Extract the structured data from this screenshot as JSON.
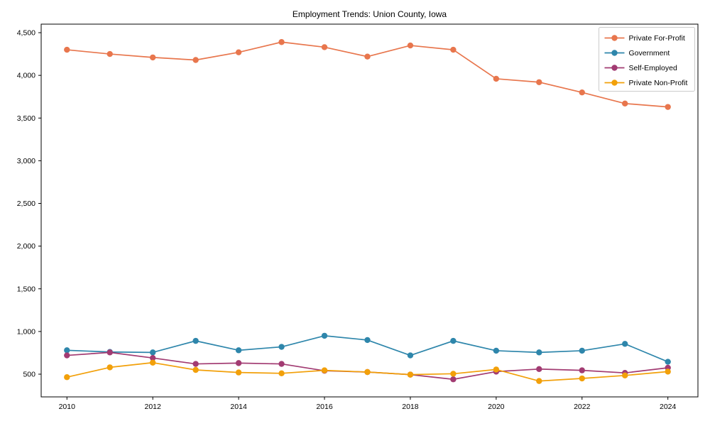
{
  "title": "Employment Trends: Union County, Iowa",
  "chart_data": {
    "type": "line",
    "title": "Employment Trends: Union County, Iowa",
    "xlabel": "",
    "ylabel": "",
    "x": [
      2010,
      2011,
      2012,
      2013,
      2014,
      2015,
      2016,
      2017,
      2018,
      2019,
      2020,
      2021,
      2022,
      2023,
      2024
    ],
    "series": [
      {
        "name": "Private For-Profit",
        "color": "#E8764D",
        "values": [
          4300,
          4250,
          4210,
          4180,
          4270,
          4390,
          4330,
          4220,
          4350,
          4300,
          3960,
          3920,
          3800,
          3670,
          3630
        ]
      },
      {
        "name": "Government",
        "color": "#2E86AB",
        "values": [
          780,
          760,
          755,
          890,
          780,
          820,
          950,
          900,
          720,
          890,
          775,
          755,
          775,
          855,
          645
        ]
      },
      {
        "name": "Self-Employed",
        "color": "#A23B72",
        "values": [
          720,
          755,
          690,
          620,
          630,
          620,
          540,
          525,
          495,
          440,
          530,
          560,
          545,
          515,
          575
        ]
      },
      {
        "name": "Private Non-Profit",
        "color": "#F2A00A",
        "values": [
          465,
          580,
          635,
          550,
          520,
          510,
          545,
          525,
          495,
          505,
          555,
          420,
          450,
          485,
          530
        ]
      }
    ],
    "xlim": [
      2009.4,
      2024.7
    ],
    "ylim": [
      234,
      4600
    ],
    "x_ticks": [
      2010,
      2012,
      2014,
      2016,
      2018,
      2020,
      2022,
      2024
    ],
    "x_tick_labels": [
      "2010",
      "2012",
      "2014",
      "2016",
      "2018",
      "2020",
      "2022",
      "2024"
    ],
    "y_ticks": [
      500,
      1000,
      1500,
      2000,
      2500,
      3000,
      3500,
      4000,
      4500
    ],
    "y_tick_labels": [
      "500",
      "1,000",
      "1,500",
      "2,000",
      "2,500",
      "3,000",
      "3,500",
      "4,000",
      "4,500"
    ],
    "grid": false,
    "legend_position": "upper right",
    "plot_border_color": "#000000",
    "legend_border_color": "#cccccc",
    "background_color": "#ffffff"
  }
}
